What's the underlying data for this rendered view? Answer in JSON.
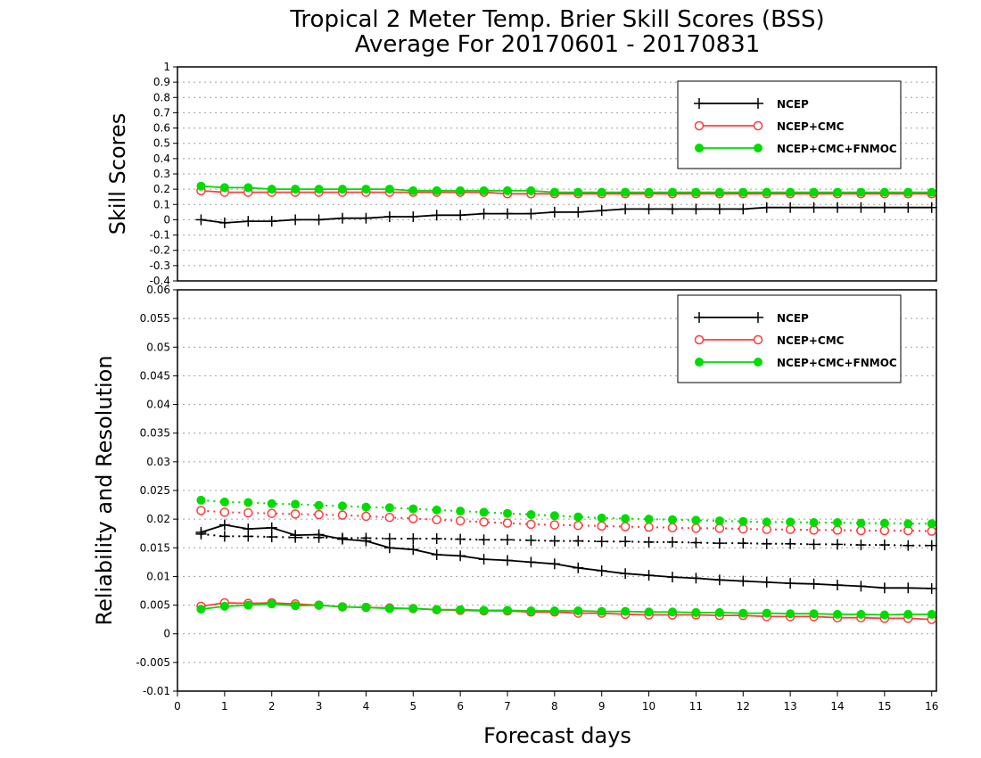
{
  "title_line1": "Tropical 2 Meter Temp. Brier Skill Scores (BSS)",
  "title_line2": "Average For 20170601 - 20170831",
  "chart_data": {
    "type": "line",
    "xlabel": "Forecast days",
    "xlim": [
      0,
      16.1
    ],
    "xticks": [
      0,
      1,
      2,
      3,
      4,
      5,
      6,
      7,
      8,
      9,
      10,
      11,
      12,
      13,
      14,
      15,
      16
    ],
    "x": [
      0.5,
      1,
      1.5,
      2,
      2.5,
      3,
      3.5,
      4,
      4.5,
      5,
      5.5,
      6,
      6.5,
      7,
      7.5,
      8,
      8.5,
      9,
      9.5,
      10,
      10.5,
      11,
      11.5,
      12,
      12.5,
      13,
      13.5,
      14,
      14.5,
      15,
      15.5,
      16
    ],
    "panels": [
      {
        "ylabel": "Skill Scores",
        "ylim": [
          -0.4,
          1
        ],
        "yticks": [
          1,
          0.9,
          0.8,
          0.7,
          0.6,
          0.5,
          0.4,
          0.3,
          0.2,
          0.1,
          0,
          -0.1,
          -0.2,
          -0.3,
          -0.4
        ],
        "grid": true,
        "legend_position": "top-right",
        "series": [
          {
            "name": "NCEP",
            "color": "#000000",
            "marker": "plus",
            "style": "solid",
            "values": [
              0.0,
              -0.02,
              -0.01,
              -0.01,
              0.0,
              0.0,
              0.01,
              0.01,
              0.02,
              0.02,
              0.03,
              0.03,
              0.04,
              0.04,
              0.04,
              0.05,
              0.05,
              0.06,
              0.07,
              0.07,
              0.07,
              0.07,
              0.07,
              0.07,
              0.08,
              0.08,
              0.08,
              0.08,
              0.08,
              0.08,
              0.08,
              0.08
            ]
          },
          {
            "name": "NCEP+CMC",
            "color": "#ff3c3c",
            "marker": "open-circle",
            "style": "solid",
            "values": [
              0.19,
              0.18,
              0.18,
              0.18,
              0.18,
              0.18,
              0.18,
              0.18,
              0.18,
              0.18,
              0.18,
              0.18,
              0.18,
              0.17,
              0.17,
              0.17,
              0.17,
              0.17,
              0.17,
              0.17,
              0.17,
              0.17,
              0.17,
              0.17,
              0.17,
              0.17,
              0.17,
              0.17,
              0.17,
              0.17,
              0.17,
              0.17
            ]
          },
          {
            "name": "NCEP+CMC+FNMOC",
            "color": "#00dc00",
            "marker": "filled-circle",
            "style": "solid",
            "values": [
              0.22,
              0.21,
              0.21,
              0.2,
              0.2,
              0.2,
              0.2,
              0.2,
              0.2,
              0.19,
              0.19,
              0.19,
              0.19,
              0.19,
              0.19,
              0.18,
              0.18,
              0.18,
              0.18,
              0.18,
              0.18,
              0.18,
              0.18,
              0.18,
              0.18,
              0.18,
              0.18,
              0.18,
              0.18,
              0.18,
              0.18,
              0.18
            ]
          }
        ]
      },
      {
        "ylabel": "Reliability and Resolution",
        "ylim": [
          -0.01,
          0.06
        ],
        "yticks": [
          0.06,
          0.055,
          0.05,
          0.045,
          0.04,
          0.035,
          0.03,
          0.025,
          0.02,
          0.015,
          0.01,
          0.005,
          0,
          -0.005,
          -0.01
        ],
        "grid": true,
        "legend_position": "top-right",
        "series": [
          {
            "name": "NCEP",
            "color": "#000000",
            "marker": "plus",
            "style": "solid",
            "values": [
              0.0177,
              0.019,
              0.0183,
              0.0185,
              0.0172,
              0.0173,
              0.0165,
              0.0162,
              0.015,
              0.0147,
              0.0138,
              0.0136,
              0.013,
              0.0128,
              0.0125,
              0.0122,
              0.0115,
              0.011,
              0.0105,
              0.0102,
              0.0099,
              0.0097,
              0.0094,
              0.0092,
              0.009,
              0.0088,
              0.0087,
              0.0085,
              0.0083,
              0.008,
              0.008,
              0.0079
            ]
          },
          {
            "name": "NCEP+CMC",
            "color": "#ff3c3c",
            "marker": "open-circle",
            "style": "solid",
            "values": [
              0.0048,
              0.0054,
              0.0053,
              0.0054,
              0.0052,
              0.005,
              0.0047,
              0.0046,
              0.0045,
              0.0044,
              0.0042,
              0.0041,
              0.004,
              0.004,
              0.0038,
              0.0038,
              0.0036,
              0.0036,
              0.0034,
              0.0033,
              0.0033,
              0.0033,
              0.0032,
              0.0032,
              0.003,
              0.003,
              0.003,
              0.0028,
              0.0028,
              0.0027,
              0.0027,
              0.0025
            ]
          },
          {
            "name": "NCEP+CMC+FNMOC",
            "color": "#00dc00",
            "marker": "filled-circle",
            "style": "solid",
            "values": [
              0.0043,
              0.0048,
              0.005,
              0.0052,
              0.0049,
              0.005,
              0.0047,
              0.0046,
              0.0044,
              0.0044,
              0.0042,
              0.0042,
              0.0041,
              0.0041,
              0.004,
              0.004,
              0.004,
              0.0039,
              0.0039,
              0.0038,
              0.0038,
              0.0037,
              0.0037,
              0.0036,
              0.0036,
              0.0035,
              0.0035,
              0.0034,
              0.0034,
              0.0033,
              0.0034,
              0.0034
            ]
          },
          {
            "name": "",
            "color": "#000000",
            "marker": "plus",
            "style": "dotted",
            "values": [
              0.0174,
              0.017,
              0.017,
              0.0169,
              0.0168,
              0.0168,
              0.0167,
              0.0167,
              0.0166,
              0.0166,
              0.0166,
              0.0165,
              0.0164,
              0.0164,
              0.0163,
              0.0162,
              0.0162,
              0.0161,
              0.0161,
              0.016,
              0.016,
              0.0159,
              0.0158,
              0.0158,
              0.0157,
              0.0157,
              0.0156,
              0.0156,
              0.0155,
              0.0155,
              0.0154,
              0.0154
            ]
          },
          {
            "name": "",
            "color": "#ff3c3c",
            "marker": "open-circle",
            "style": "dotted",
            "values": [
              0.0215,
              0.0212,
              0.0211,
              0.021,
              0.0209,
              0.0208,
              0.0207,
              0.0205,
              0.0203,
              0.0201,
              0.0199,
              0.0197,
              0.0195,
              0.0193,
              0.0191,
              0.019,
              0.0189,
              0.0188,
              0.0187,
              0.0186,
              0.0185,
              0.0184,
              0.0184,
              0.0183,
              0.0182,
              0.0182,
              0.0181,
              0.0181,
              0.018,
              0.018,
              0.018,
              0.0179
            ]
          },
          {
            "name": "",
            "color": "#00dc00",
            "marker": "filled-circle",
            "style": "dotted",
            "values": [
              0.0233,
              0.023,
              0.0229,
              0.0227,
              0.0226,
              0.0224,
              0.0223,
              0.0221,
              0.022,
              0.0218,
              0.0216,
              0.0214,
              0.0212,
              0.021,
              0.0208,
              0.0206,
              0.0204,
              0.0202,
              0.0201,
              0.02,
              0.0199,
              0.0198,
              0.0197,
              0.0196,
              0.0195,
              0.0195,
              0.0194,
              0.0194,
              0.0193,
              0.0193,
              0.0192,
              0.0192
            ]
          }
        ]
      }
    ]
  }
}
